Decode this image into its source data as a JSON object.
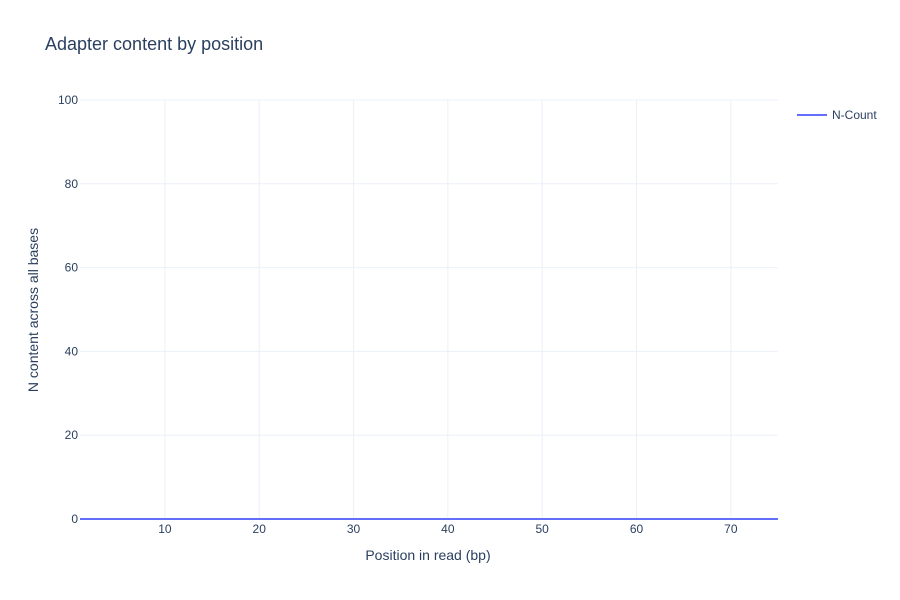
{
  "chart_data": {
    "type": "line",
    "title": "Adapter content by position",
    "xlabel": "Position in read (bp)",
    "ylabel": "N content across all bases",
    "xlim": [
      1,
      75
    ],
    "ylim": [
      0,
      100
    ],
    "x_ticks": [
      10,
      20,
      30,
      40,
      50,
      60,
      70
    ],
    "y_ticks": [
      0,
      20,
      40,
      60,
      80,
      100
    ],
    "grid": true,
    "legend_position": "top-right",
    "series": [
      {
        "name": "N-Count",
        "color": "#636efa",
        "x": [
          1,
          75
        ],
        "y": [
          0,
          0
        ]
      }
    ]
  }
}
